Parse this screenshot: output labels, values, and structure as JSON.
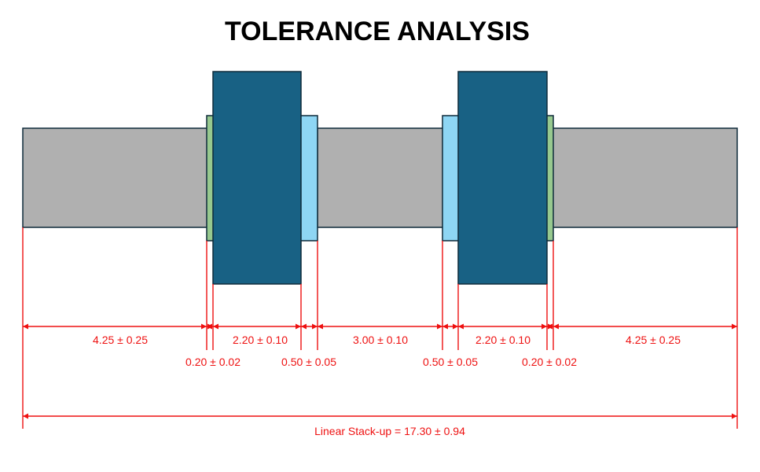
{
  "title": "TOLERANCE ANALYSIS",
  "colors": {
    "shaft": "#b0b0b0",
    "spacer_green": "#97c98f",
    "spacer_light_blue": "#8ed6f4",
    "bearing_dark_blue": "#186184",
    "outline": "#0e2a3a",
    "dimension": "#ee1111"
  },
  "dimensions": [
    {
      "label": "4.25 ± 0.25",
      "nominal": 4.25,
      "tolerance": 0.25,
      "part": "shaft-left"
    },
    {
      "label": "0.20 ± 0.02",
      "nominal": 0.2,
      "tolerance": 0.02,
      "part": "spacer-green-left"
    },
    {
      "label": "2.20 ± 0.10",
      "nominal": 2.2,
      "tolerance": 0.1,
      "part": "bearing-left"
    },
    {
      "label": "0.50 ± 0.05",
      "nominal": 0.5,
      "tolerance": 0.05,
      "part": "spacer-blue-left"
    },
    {
      "label": "3.00 ± 0.10",
      "nominal": 3.0,
      "tolerance": 0.1,
      "part": "shaft-middle"
    },
    {
      "label": "0.50 ± 0.05",
      "nominal": 0.5,
      "tolerance": 0.05,
      "part": "spacer-blue-right"
    },
    {
      "label": "2.20 ± 0.10",
      "nominal": 2.2,
      "tolerance": 0.1,
      "part": "bearing-right"
    },
    {
      "label": "0.20 ± 0.02",
      "nominal": 0.2,
      "tolerance": 0.02,
      "part": "spacer-green-right"
    },
    {
      "label": "4.25 ± 0.25",
      "nominal": 4.25,
      "tolerance": 0.25,
      "part": "shaft-right"
    }
  ],
  "stackup": {
    "label": "Linear Stack-up = 17.30 ± 0.94",
    "nominal": 17.3,
    "tolerance": 0.94
  }
}
